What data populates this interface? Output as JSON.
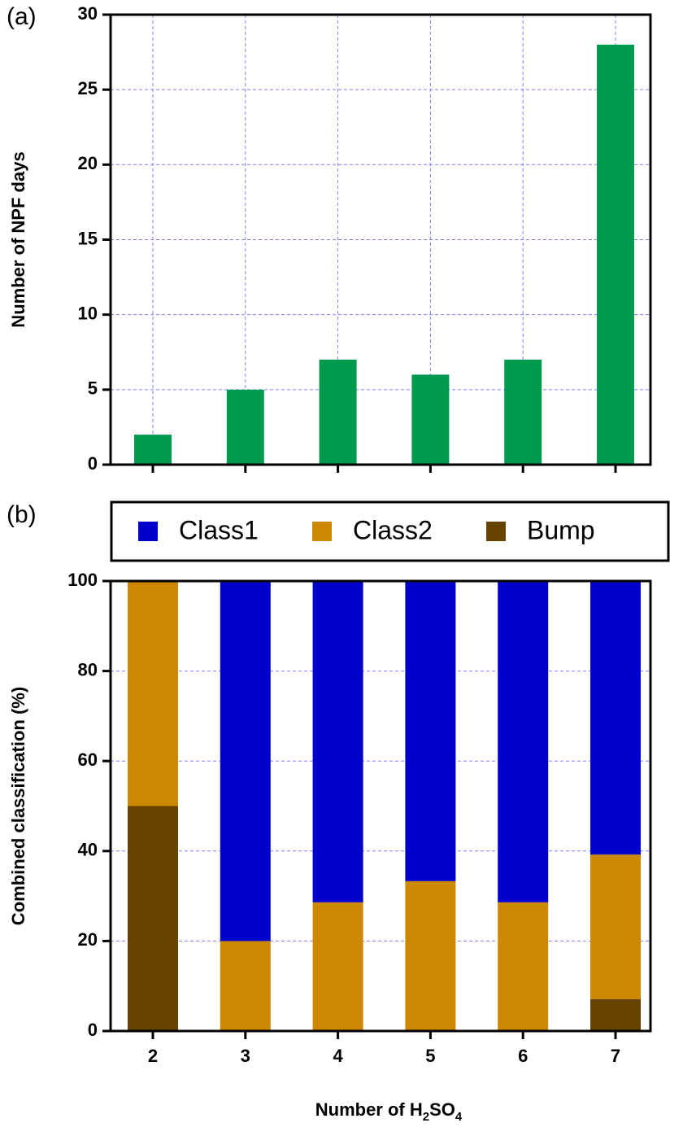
{
  "chart_data": [
    {
      "type": "bar",
      "title": "(a)",
      "ylabel": "Number of NPF days",
      "categories": [
        "2",
        "3",
        "4",
        "5",
        "6",
        "7"
      ],
      "values": [
        2,
        5,
        7,
        6,
        7,
        28
      ],
      "color": "#009a4e",
      "ylim": [
        0,
        30
      ],
      "yticks": [
        0,
        5,
        10,
        15,
        20,
        25,
        30
      ],
      "grid": true,
      "xgrid": true,
      "show_xtick_labels": false
    },
    {
      "type": "stacked_bar",
      "title": "(b)",
      "ylabel": "Combined classification (%)",
      "xlabel": "Number of H2SO4",
      "categories": [
        "2",
        "3",
        "4",
        "5",
        "6",
        "7"
      ],
      "series": [
        {
          "name": "Class1",
          "color": "#0000cc",
          "values": [
            0,
            80,
            71.4,
            66.7,
            71.4,
            60.7
          ]
        },
        {
          "name": "Class2",
          "color": "#cc8800",
          "values": [
            50,
            20,
            28.6,
            33.3,
            28.6,
            32.1
          ]
        },
        {
          "name": "Bump",
          "color": "#664400",
          "values": [
            50,
            0,
            0,
            0,
            0,
            7.1
          ]
        }
      ],
      "ylim": [
        0,
        100
      ],
      "yticks": [
        0,
        20,
        40,
        60,
        80,
        100
      ],
      "grid": true,
      "xgrid": false,
      "show_xtick_labels": true,
      "legend": "top"
    }
  ]
}
